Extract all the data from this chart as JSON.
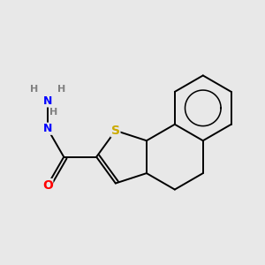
{
  "background_color": "#e8e8e8",
  "bond_color": "#000000",
  "atom_colors": {
    "O": "#ff0000",
    "S": "#ccaa00",
    "N": "#0000ff",
    "H": "#808080"
  },
  "bond_width": 1.4,
  "figsize": [
    3.0,
    3.0
  ],
  "dpi": 100
}
